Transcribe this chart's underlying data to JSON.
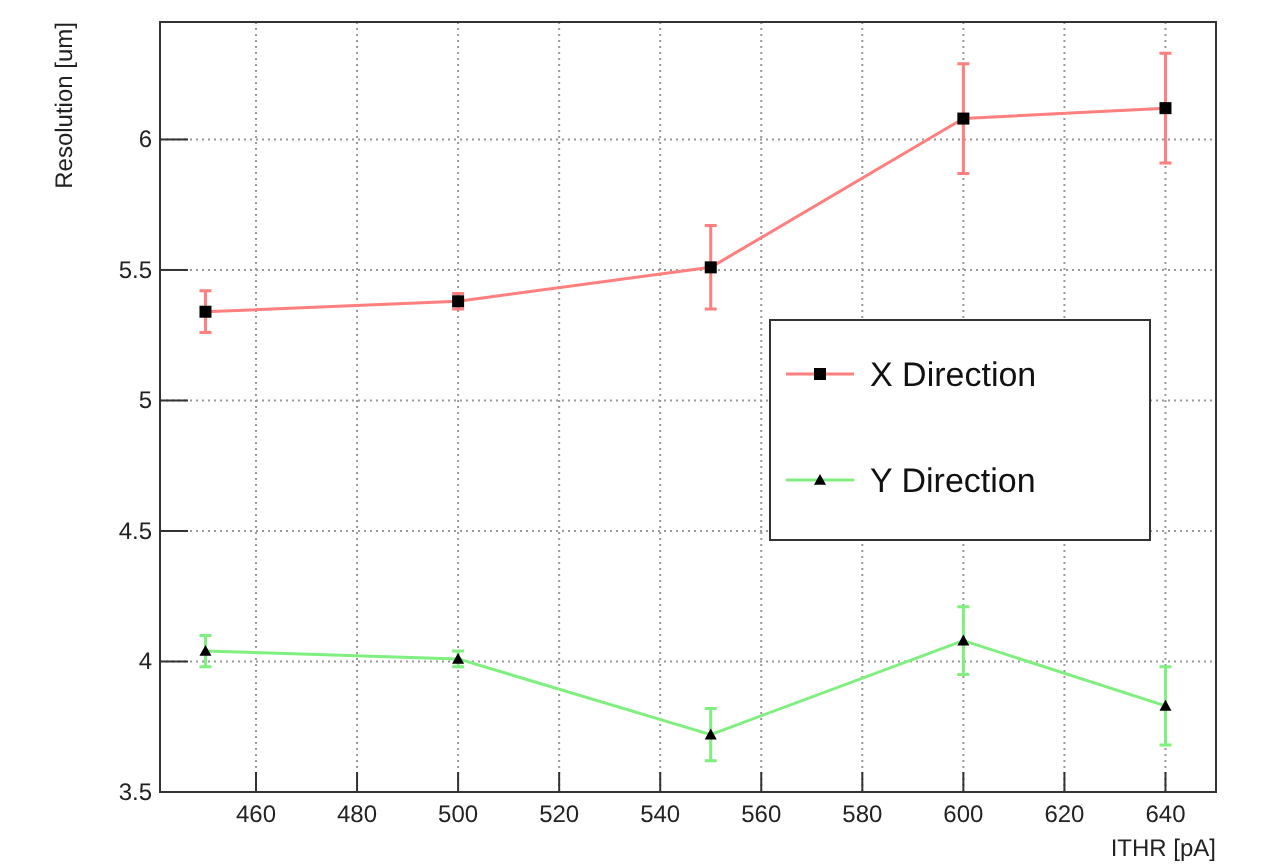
{
  "chart_data": {
    "type": "line",
    "xlabel": "ITHR [pA]",
    "ylabel": "Resolution [um]",
    "xlim": [
      441,
      650
    ],
    "xticks": [
      460,
      480,
      500,
      520,
      540,
      560,
      580,
      600,
      620,
      640
    ],
    "ylim": [
      3.5,
      6.45
    ],
    "yticks": [
      3.5,
      4,
      4.5,
      5,
      5.5,
      6
    ],
    "grid": true,
    "legend": "right",
    "series": [
      {
        "name": "X Direction",
        "color": "#ff7f7f",
        "marker": "square",
        "x": [
          450,
          500,
          550,
          600,
          640
        ],
        "values": [
          5.34,
          5.38,
          5.51,
          6.08,
          6.12
        ],
        "errors": [
          0.08,
          0.03,
          0.16,
          0.21,
          0.21
        ]
      },
      {
        "name": "Y Direction",
        "color": "#7fef7f",
        "marker": "triangle",
        "x": [
          450,
          500,
          550,
          600,
          640
        ],
        "values": [
          4.04,
          4.01,
          3.72,
          4.08,
          3.83
        ],
        "errors": [
          0.06,
          0.03,
          0.1,
          0.13,
          0.15
        ]
      }
    ]
  }
}
